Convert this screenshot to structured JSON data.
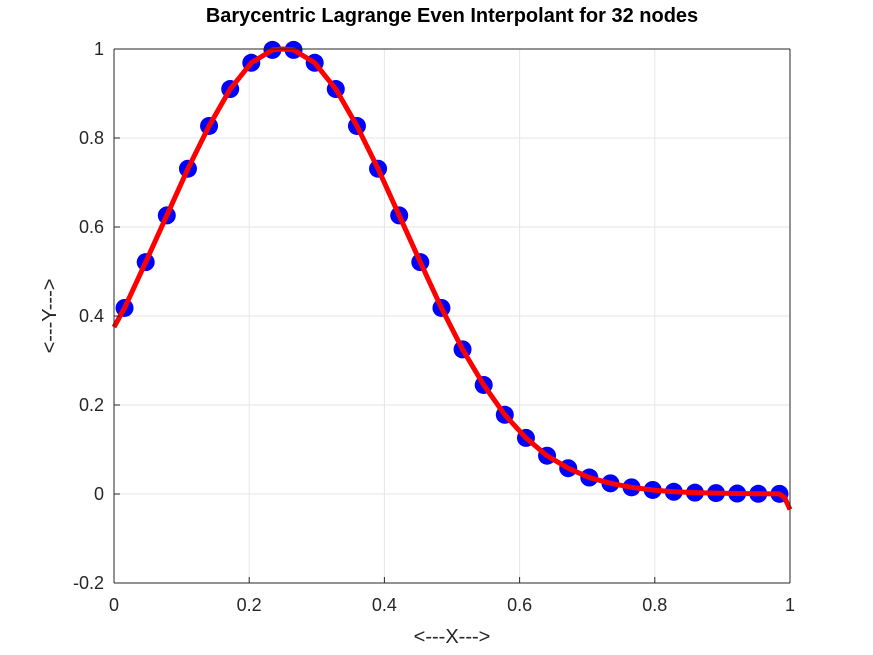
{
  "chart_data": {
    "type": "line",
    "title": "Barycentric Lagrange Even Interpolant for 32 nodes",
    "xlabel": "<---X--->",
    "ylabel": "<---Y--->",
    "xlim": [
      0,
      1
    ],
    "ylim": [
      -0.2,
      1
    ],
    "grid": true,
    "x_ticks": [
      "0",
      "0.2",
      "0.4",
      "0.6",
      "0.8",
      "1"
    ],
    "y_ticks": [
      "-0.2",
      "0",
      "0.2",
      "0.4",
      "0.6",
      "0.8",
      "1"
    ],
    "series": [
      {
        "kind": "scatter",
        "color": "#0000ff",
        "x": [
          0.0156,
          0.0469,
          0.0781,
          0.1094,
          0.1406,
          0.1719,
          0.2031,
          0.2344,
          0.2656,
          0.2969,
          0.3281,
          0.3594,
          0.3906,
          0.4219,
          0.4531,
          0.4844,
          0.5156,
          0.5469,
          0.5781,
          0.6094,
          0.6406,
          0.6719,
          0.7031,
          0.7344,
          0.7656,
          0.7969,
          0.8281,
          0.8594,
          0.8906,
          0.9219,
          0.9531,
          0.9844
        ],
        "y": [
          0.418,
          0.521,
          0.626,
          0.731,
          0.827,
          0.91,
          0.969,
          0.998,
          0.998,
          0.969,
          0.91,
          0.827,
          0.731,
          0.626,
          0.521,
          0.418,
          0.325,
          0.245,
          0.178,
          0.126,
          0.086,
          0.058,
          0.037,
          0.024,
          0.015,
          0.009,
          0.005,
          0.003,
          0.002,
          0.001,
          0.0005,
          0.0003
        ]
      },
      {
        "kind": "line",
        "color": "#ff0000",
        "x": [
          0.0,
          0.0156,
          0.0469,
          0.0781,
          0.1094,
          0.1406,
          0.1719,
          0.2031,
          0.2344,
          0.25,
          0.2656,
          0.2969,
          0.3281,
          0.3594,
          0.3906,
          0.4219,
          0.4531,
          0.4844,
          0.5156,
          0.5469,
          0.5781,
          0.6094,
          0.6406,
          0.6719,
          0.7031,
          0.7344,
          0.7656,
          0.7969,
          0.8281,
          0.8594,
          0.8906,
          0.9219,
          0.9531,
          0.9844,
          0.992,
          1.0
        ],
        "y": [
          0.375,
          0.418,
          0.521,
          0.626,
          0.731,
          0.827,
          0.91,
          0.969,
          0.998,
          1.0,
          0.998,
          0.969,
          0.91,
          0.827,
          0.731,
          0.626,
          0.521,
          0.418,
          0.325,
          0.245,
          0.178,
          0.126,
          0.086,
          0.058,
          0.037,
          0.024,
          0.015,
          0.009,
          0.005,
          0.003,
          0.002,
          0.001,
          0.0005,
          0.0003,
          -0.008,
          -0.035
        ]
      }
    ]
  }
}
